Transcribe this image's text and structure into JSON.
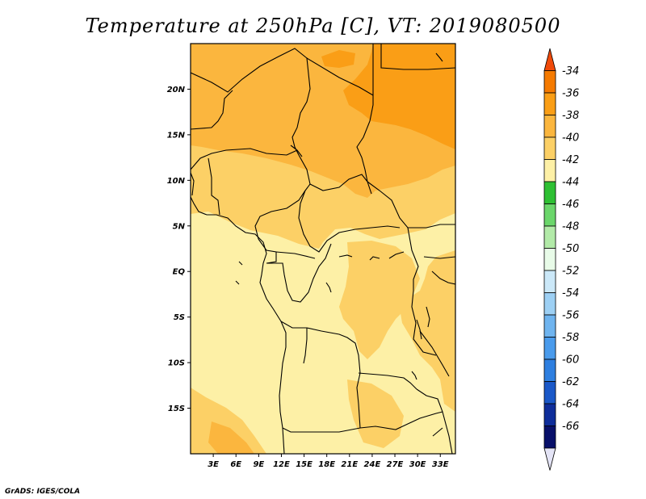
{
  "title": "Temperature at 250hPa [C], VT: 2019080500",
  "credit": "GrADS: IGES/COLA",
  "map": {
    "lon_range": [
      0,
      35
    ],
    "lat_range": [
      -20,
      25
    ],
    "lat_ticks": [
      {
        "value": 20,
        "label": "20N"
      },
      {
        "value": 15,
        "label": "15N"
      },
      {
        "value": 10,
        "label": "10N"
      },
      {
        "value": 5,
        "label": "5N"
      },
      {
        "value": 0,
        "label": "EQ"
      },
      {
        "value": -5,
        "label": "5S"
      },
      {
        "value": -10,
        "label": "10S"
      },
      {
        "value": -15,
        "label": "15S"
      }
    ],
    "lon_ticks": [
      {
        "value": 3,
        "label": "3E"
      },
      {
        "value": 6,
        "label": "6E"
      },
      {
        "value": 9,
        "label": "9E"
      },
      {
        "value": 12,
        "label": "12E"
      },
      {
        "value": 15,
        "label": "15E"
      },
      {
        "value": 18,
        "label": "18E"
      },
      {
        "value": 21,
        "label": "21E"
      },
      {
        "value": 24,
        "label": "24E"
      },
      {
        "value": 27,
        "label": "27E"
      },
      {
        "value": 30,
        "label": "30E"
      },
      {
        "value": 33,
        "label": "33E"
      }
    ]
  },
  "colorbar": {
    "labels": [
      "-34",
      "-36",
      "-38",
      "-40",
      "-42",
      "-44",
      "-46",
      "-48",
      "-50",
      "-52",
      "-54",
      "-56",
      "-58",
      "-60",
      "-62",
      "-64",
      "-66"
    ],
    "colors": [
      "#f04a0a",
      "#f57a00",
      "#fa9e16",
      "#fbb63e",
      "#fcd066",
      "#fdf0a6",
      "#2ec033",
      "#6bd66b",
      "#b2eaa8",
      "#e8fbe8",
      "#cbe8f8",
      "#9dd0f4",
      "#6fb4ef",
      "#4a9bec",
      "#2e7fe0",
      "#1a58c8",
      "#0e2d9a",
      "#08106a",
      "#e4e4f6"
    ]
  },
  "field_colors": {
    "lt_m42": "#fdf0a6",
    "m42_m40": "#fcd066",
    "m40_m38": "#fbb63e",
    "m38_m36": "#fa9e16",
    "border": "#000000"
  }
}
